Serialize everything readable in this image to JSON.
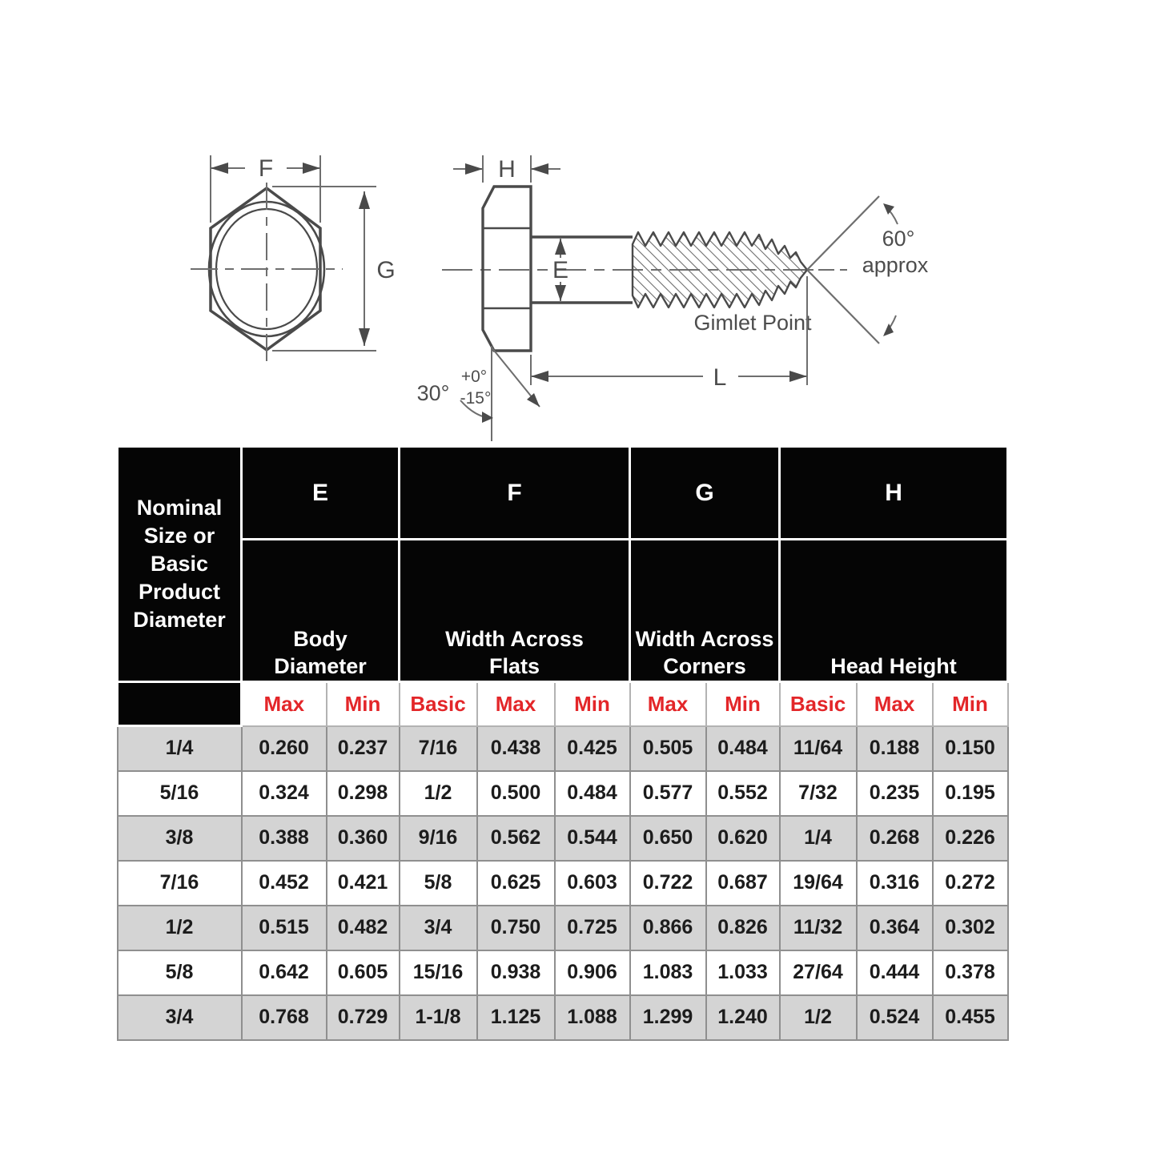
{
  "colors": {
    "header_bg": "#050505",
    "accent_red": "#e32629",
    "row_gray": "#d4d4d4",
    "diagram_ink": "#4a4a4a"
  },
  "diagram": {
    "labels": {
      "f": "F",
      "g": "G",
      "h": "H",
      "e": "E",
      "l": "L",
      "angle60": "60°",
      "approx": "approx",
      "gimlet_point": "Gimlet Point",
      "angle30": "30°",
      "tol_plus": "+0°",
      "tol_minus": "-15°"
    }
  },
  "table": {
    "corner_header": "Nominal\nSize or\nBasic\nProduct\nDiameter",
    "groups": [
      {
        "letter": "E",
        "name": "Body\nDiameter"
      },
      {
        "letter": "F",
        "name": "Width Across\nFlats"
      },
      {
        "letter": "G",
        "name": "Width Across\nCorners"
      },
      {
        "letter": "H",
        "name": "Head Height"
      }
    ],
    "sub_headers": [
      "Max",
      "Min",
      "Basic",
      "Max",
      "Min",
      "Max",
      "Min",
      "Basic",
      "Max",
      "Min"
    ],
    "rows": [
      {
        "size": "1/4",
        "values": [
          "0.260",
          "0.237",
          "7/16",
          "0.438",
          "0.425",
          "0.505",
          "0.484",
          "11/64",
          "0.188",
          "0.150"
        ]
      },
      {
        "size": "5/16",
        "values": [
          "0.324",
          "0.298",
          "1/2",
          "0.500",
          "0.484",
          "0.577",
          "0.552",
          "7/32",
          "0.235",
          "0.195"
        ]
      },
      {
        "size": "3/8",
        "values": [
          "0.388",
          "0.360",
          "9/16",
          "0.562",
          "0.544",
          "0.650",
          "0.620",
          "1/4",
          "0.268",
          "0.226"
        ]
      },
      {
        "size": "7/16",
        "values": [
          "0.452",
          "0.421",
          "5/8",
          "0.625",
          "0.603",
          "0.722",
          "0.687",
          "19/64",
          "0.316",
          "0.272"
        ]
      },
      {
        "size": "1/2",
        "values": [
          "0.515",
          "0.482",
          "3/4",
          "0.750",
          "0.725",
          "0.866",
          "0.826",
          "11/32",
          "0.364",
          "0.302"
        ]
      },
      {
        "size": "5/8",
        "values": [
          "0.642",
          "0.605",
          "15/16",
          "0.938",
          "0.906",
          "1.083",
          "1.033",
          "27/64",
          "0.444",
          "0.378"
        ]
      },
      {
        "size": "3/4",
        "values": [
          "0.768",
          "0.729",
          "1-1/8",
          "1.125",
          "1.088",
          "1.299",
          "1.240",
          "1/2",
          "0.524",
          "0.455"
        ]
      }
    ]
  }
}
